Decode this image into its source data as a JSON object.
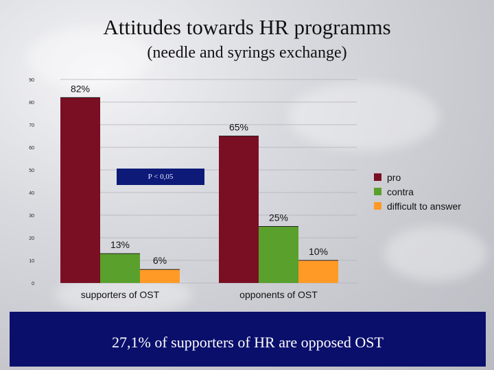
{
  "slide": {
    "title": "Attitudes towards HR programms",
    "subtitle": "(needle and syrings exchange)",
    "pvalue_label": "P < 0,05",
    "footer_text": "27,1% of supporters of HR are opposed OST"
  },
  "chart_data": {
    "type": "bar",
    "categories": [
      "supporters of OST",
      "opponents of OST"
    ],
    "series": [
      {
        "name": "pro",
        "color": "#7a0f24",
        "values": [
          82,
          65
        ],
        "labels": [
          "82%",
          "65%"
        ]
      },
      {
        "name": "contra",
        "color": "#5aa02c",
        "values": [
          13,
          25
        ],
        "labels": [
          "13%",
          "25%"
        ]
      },
      {
        "name": "difficult to answer",
        "color": "#ff9a26",
        "values": [
          6,
          10
        ],
        "labels": [
          "6%",
          "10%"
        ]
      }
    ],
    "yticks": [
      0,
      10,
      20,
      30,
      40,
      50,
      60,
      70,
      80,
      90
    ],
    "ylim": [
      0,
      90
    ],
    "title": "",
    "xlabel": "",
    "ylabel": "",
    "grid": true,
    "legend_position": "right"
  }
}
